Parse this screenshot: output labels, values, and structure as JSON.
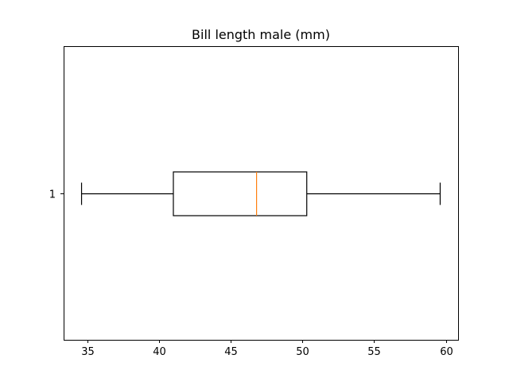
{
  "chart_data": {
    "type": "boxplot",
    "title": "Bill length male (mm)",
    "orientation": "horizontal",
    "xlim": [
      33.35,
      60.85
    ],
    "x_ticks": [
      35,
      40,
      45,
      50,
      55,
      60
    ],
    "y_ticks": [
      "1"
    ],
    "boxes": [
      {
        "category": "1",
        "whisker_low": 34.6,
        "q1": 41.0,
        "median": 46.8,
        "q3": 50.3,
        "whisker_high": 59.6
      }
    ],
    "grid": false,
    "colors": {
      "box": "#000000",
      "median": "#ff7f0e",
      "whisker": "#000000"
    }
  }
}
